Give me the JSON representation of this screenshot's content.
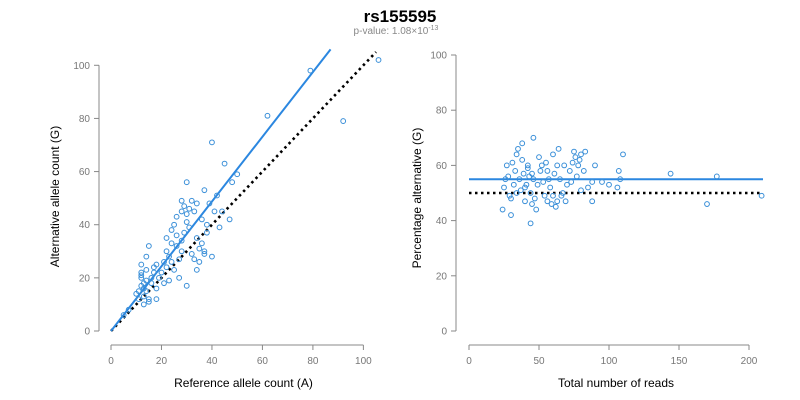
{
  "figure": {
    "title": "rs155595",
    "subtitle_prefix": "p-value: 1.08×10",
    "subtitle_exponent": "-13"
  },
  "colors": {
    "point": "#3a8fd8",
    "fit_line": "#2b87e0",
    "reference_line": "#000000",
    "axis": "#888888"
  },
  "chart_data": [
    {
      "type": "scatter",
      "xlabel": "Reference allele count (A)",
      "ylabel": "Alternative allele count (G)",
      "xlim": [
        0,
        105
      ],
      "ylim": [
        0,
        105
      ],
      "xticks": [
        0,
        20,
        40,
        60,
        80,
        100
      ],
      "yticks": [
        0,
        20,
        40,
        60,
        80,
        100
      ],
      "fit_line": {
        "style": "solid",
        "x": [
          0,
          87
        ],
        "y": [
          0,
          106
        ]
      },
      "reference_line": {
        "style": "dotted",
        "x": [
          0,
          105
        ],
        "y": [
          0,
          105
        ]
      },
      "points": [
        [
          5,
          6
        ],
        [
          7,
          8
        ],
        [
          10,
          14
        ],
        [
          11,
          12
        ],
        [
          11,
          15
        ],
        [
          12,
          17
        ],
        [
          12,
          20
        ],
        [
          12,
          21
        ],
        [
          12,
          22
        ],
        [
          12,
          25
        ],
        [
          13,
          10
        ],
        [
          13,
          13
        ],
        [
          13,
          16
        ],
        [
          13,
          18
        ],
        [
          14,
          15
        ],
        [
          14,
          19
        ],
        [
          14,
          23
        ],
        [
          14,
          28
        ],
        [
          15,
          32
        ],
        [
          15,
          11
        ],
        [
          15,
          12
        ],
        [
          16,
          18
        ],
        [
          16,
          20
        ],
        [
          17,
          22
        ],
        [
          17,
          24
        ],
        [
          18,
          16
        ],
        [
          18,
          25
        ],
        [
          18,
          12
        ],
        [
          19,
          20
        ],
        [
          20,
          22
        ],
        [
          21,
          26
        ],
        [
          21,
          18
        ],
        [
          22,
          24
        ],
        [
          22,
          30
        ],
        [
          22,
          35
        ],
        [
          23,
          19
        ],
        [
          23,
          28
        ],
        [
          24,
          33
        ],
        [
          24,
          38
        ],
        [
          24,
          26
        ],
        [
          25,
          40
        ],
        [
          25,
          23
        ],
        [
          26,
          32
        ],
        [
          26,
          36
        ],
        [
          26,
          43
        ],
        [
          27,
          20
        ],
        [
          27,
          27
        ],
        [
          28,
          30
        ],
        [
          28,
          34
        ],
        [
          28,
          45
        ],
        [
          28,
          49
        ],
        [
          29,
          37
        ],
        [
          29,
          47
        ],
        [
          30,
          17
        ],
        [
          30,
          41
        ],
        [
          30,
          44
        ],
        [
          30,
          56
        ],
        [
          31,
          39
        ],
        [
          31,
          46
        ],
        [
          32,
          29
        ],
        [
          32,
          49
        ],
        [
          33,
          27
        ],
        [
          33,
          45
        ],
        [
          34,
          23
        ],
        [
          34,
          35
        ],
        [
          34,
          48
        ],
        [
          35,
          26
        ],
        [
          35,
          31
        ],
        [
          36,
          33
        ],
        [
          36,
          42
        ],
        [
          37,
          30
        ],
        [
          37,
          29
        ],
        [
          37,
          53
        ],
        [
          38,
          40
        ],
        [
          38,
          37
        ],
        [
          39,
          48
        ],
        [
          40,
          28
        ],
        [
          40,
          71
        ],
        [
          41,
          45
        ],
        [
          42,
          51
        ],
        [
          43,
          39
        ],
        [
          44,
          45
        ],
        [
          45,
          63
        ],
        [
          47,
          42
        ],
        [
          48,
          56
        ],
        [
          50,
          59
        ],
        [
          62,
          81
        ],
        [
          79,
          98
        ],
        [
          92,
          79
        ],
        [
          106,
          102
        ]
      ]
    },
    {
      "type": "scatter",
      "xlabel": "Total number of reads",
      "ylabel": "Percentage alternative (G)",
      "xlim": [
        0,
        210
      ],
      "ylim": [
        0,
        100
      ],
      "xticks": [
        0,
        50,
        100,
        150,
        200
      ],
      "yticks": [
        0,
        20,
        40,
        60,
        80,
        100
      ],
      "fit_line": {
        "style": "solid",
        "y_value": 55
      },
      "reference_line": {
        "style": "dotted",
        "y_value": 50
      },
      "points": [
        [
          24,
          44
        ],
        [
          25,
          52
        ],
        [
          26,
          55
        ],
        [
          27,
          60
        ],
        [
          28,
          56
        ],
        [
          29,
          49
        ],
        [
          30,
          48
        ],
        [
          30,
          42
        ],
        [
          31,
          61
        ],
        [
          32,
          53
        ],
        [
          33,
          58
        ],
        [
          34,
          50
        ],
        [
          34,
          64
        ],
        [
          35,
          66
        ],
        [
          36,
          55
        ],
        [
          37,
          51
        ],
        [
          38,
          62
        ],
        [
          38,
          68
        ],
        [
          39,
          57
        ],
        [
          40,
          47
        ],
        [
          40,
          52
        ],
        [
          41,
          53
        ],
        [
          42,
          59
        ],
        [
          42,
          60
        ],
        [
          43,
          56
        ],
        [
          44,
          50
        ],
        [
          44,
          39
        ],
        [
          45,
          57
        ],
        [
          45,
          46
        ],
        [
          46,
          55
        ],
        [
          46,
          70
        ],
        [
          47,
          48
        ],
        [
          48,
          44
        ],
        [
          49,
          53
        ],
        [
          50,
          63
        ],
        [
          51,
          58
        ],
        [
          52,
          60
        ],
        [
          53,
          54
        ],
        [
          54,
          49
        ],
        [
          55,
          61
        ],
        [
          56,
          47
        ],
        [
          56,
          58
        ],
        [
          57,
          55
        ],
        [
          58,
          52
        ],
        [
          59,
          46
        ],
        [
          60,
          64
        ],
        [
          60,
          49
        ],
        [
          61,
          57
        ],
        [
          62,
          45
        ],
        [
          63,
          60
        ],
        [
          63,
          47
        ],
        [
          64,
          66
        ],
        [
          65,
          55
        ],
        [
          66,
          49
        ],
        [
          67,
          50
        ],
        [
          68,
          60
        ],
        [
          69,
          47
        ],
        [
          70,
          53
        ],
        [
          72,
          58
        ],
        [
          73,
          54
        ],
        [
          74,
          61
        ],
        [
          75,
          65
        ],
        [
          76,
          63
        ],
        [
          77,
          56
        ],
        [
          78,
          60
        ],
        [
          79,
          62
        ],
        [
          80,
          64
        ],
        [
          80,
          51
        ],
        [
          82,
          58
        ],
        [
          83,
          65
        ],
        [
          85,
          52
        ],
        [
          88,
          47
        ],
        [
          88,
          54
        ],
        [
          90,
          60
        ],
        [
          95,
          54
        ],
        [
          100,
          53
        ],
        [
          106,
          52
        ],
        [
          107,
          58
        ],
        [
          108,
          55
        ],
        [
          110,
          64
        ],
        [
          144,
          57
        ],
        [
          170,
          46
        ],
        [
          177,
          56
        ],
        [
          209,
          49
        ]
      ]
    }
  ]
}
